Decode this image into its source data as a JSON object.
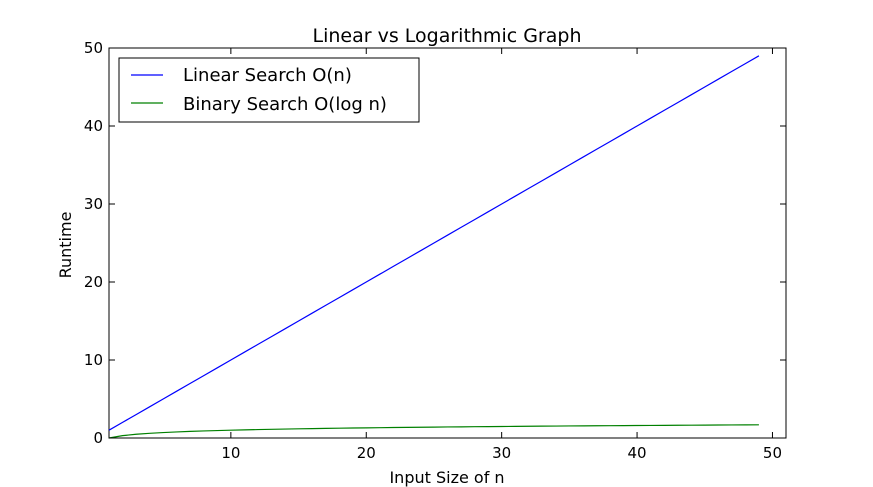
{
  "chart_data": {
    "type": "line",
    "title": "Linear vs Logarithmic Graph",
    "xlabel": "Input Size of n",
    "ylabel": "Runtime",
    "xlim": [
      1,
      51
    ],
    "ylim": [
      0,
      50
    ],
    "xticks": [
      10,
      20,
      30,
      40,
      50
    ],
    "xtick_labels": [
      "10",
      "20",
      "30",
      "40",
      "50"
    ],
    "yticks": [
      0,
      10,
      20,
      30,
      40,
      50
    ],
    "ytick_labels": [
      "0",
      "10",
      "20",
      "30",
      "40",
      "50"
    ],
    "grid": false,
    "legend_position": "top-left",
    "series": [
      {
        "name": "Linear Search O(n)",
        "color": "#0000ff",
        "x": [
          1,
          2,
          3,
          4,
          5,
          6,
          7,
          8,
          9,
          10,
          11,
          12,
          13,
          14,
          15,
          16,
          17,
          18,
          19,
          20,
          21,
          22,
          23,
          24,
          25,
          26,
          27,
          28,
          29,
          30,
          31,
          32,
          33,
          34,
          35,
          36,
          37,
          38,
          39,
          40,
          41,
          42,
          43,
          44,
          45,
          46,
          47,
          48,
          49
        ],
        "y": [
          1,
          2,
          3,
          4,
          5,
          6,
          7,
          8,
          9,
          10,
          11,
          12,
          13,
          14,
          15,
          16,
          17,
          18,
          19,
          20,
          21,
          22,
          23,
          24,
          25,
          26,
          27,
          28,
          29,
          30,
          31,
          32,
          33,
          34,
          35,
          36,
          37,
          38,
          39,
          40,
          41,
          42,
          43,
          44,
          45,
          46,
          47,
          48,
          49
        ]
      },
      {
        "name": "Binary Search O(log n)",
        "color": "#008000",
        "x": [
          1,
          2,
          3,
          4,
          5,
          6,
          7,
          8,
          9,
          10,
          11,
          12,
          13,
          14,
          15,
          16,
          17,
          18,
          19,
          20,
          21,
          22,
          23,
          24,
          25,
          26,
          27,
          28,
          29,
          30,
          31,
          32,
          33,
          34,
          35,
          36,
          37,
          38,
          39,
          40,
          41,
          42,
          43,
          44,
          45,
          46,
          47,
          48,
          49
        ],
        "y": [
          0,
          0.301,
          0.477,
          0.602,
          0.699,
          0.778,
          0.845,
          0.903,
          0.954,
          1,
          1.041,
          1.079,
          1.114,
          1.146,
          1.176,
          1.204,
          1.23,
          1.255,
          1.279,
          1.301,
          1.322,
          1.342,
          1.362,
          1.38,
          1.398,
          1.415,
          1.431,
          1.447,
          1.462,
          1.477,
          1.491,
          1.505,
          1.519,
          1.531,
          1.544,
          1.556,
          1.568,
          1.58,
          1.591,
          1.602,
          1.613,
          1.623,
          1.633,
          1.643,
          1.653,
          1.663,
          1.672,
          1.681,
          1.69
        ]
      }
    ]
  }
}
